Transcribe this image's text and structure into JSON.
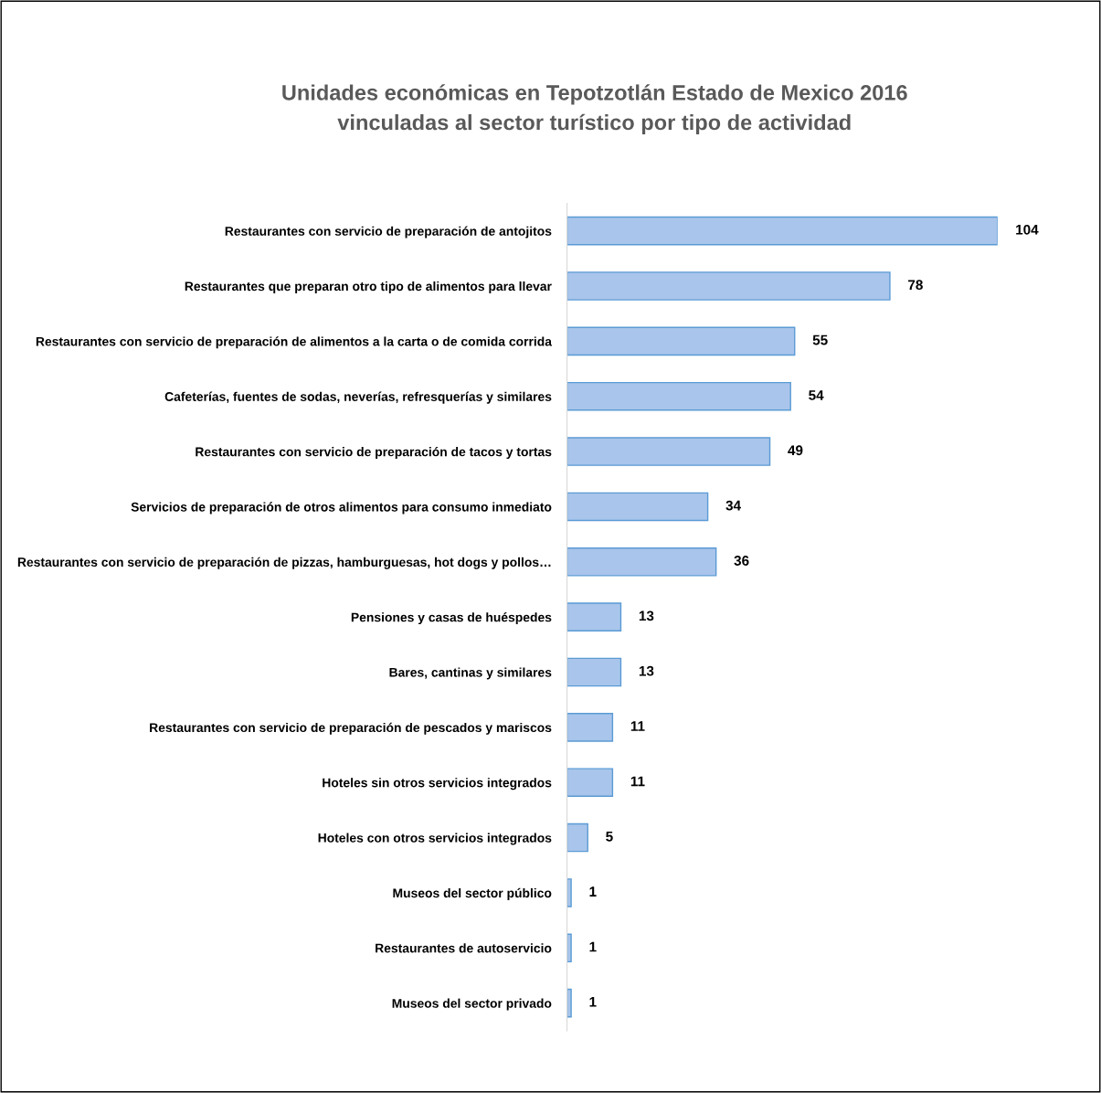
{
  "chart_data": {
    "type": "bar",
    "orientation": "horizontal",
    "title": "Unidades económicas en Tepotzotlán Estado de Mexico 2016\nvinculadas al sector turístico por tipo de actividad",
    "categories": [
      "Restaurantes con servicio de preparación de antojitos",
      "Restaurantes que preparan otro tipo de alimentos para llevar",
      "Restaurantes con servicio de preparación de alimentos a la carta o de comida corrida",
      "Cafeterías, fuentes de sodas, neverías, refresquerías y similares",
      "Restaurantes con servicio de preparación de tacos y tortas",
      "Servicios de preparación de otros alimentos para consumo inmediato",
      "Restaurantes con servicio de preparación de pizzas, hamburguesas, hot dogs y pollos…",
      "Pensiones y casas de huéspedes",
      "Bares, cantinas y similares",
      "Restaurantes con servicio de preparación de pescados y mariscos",
      "Hoteles sin otros servicios integrados",
      "Hoteles con otros servicios integrados",
      "Museos del sector público",
      "Restaurantes de autoservicio",
      "Museos del sector privado"
    ],
    "values": [
      104,
      78,
      55,
      54,
      49,
      34,
      36,
      13,
      13,
      11,
      11,
      5,
      1,
      1,
      1
    ],
    "color": "#a9c5eb",
    "data_labels": true
  }
}
